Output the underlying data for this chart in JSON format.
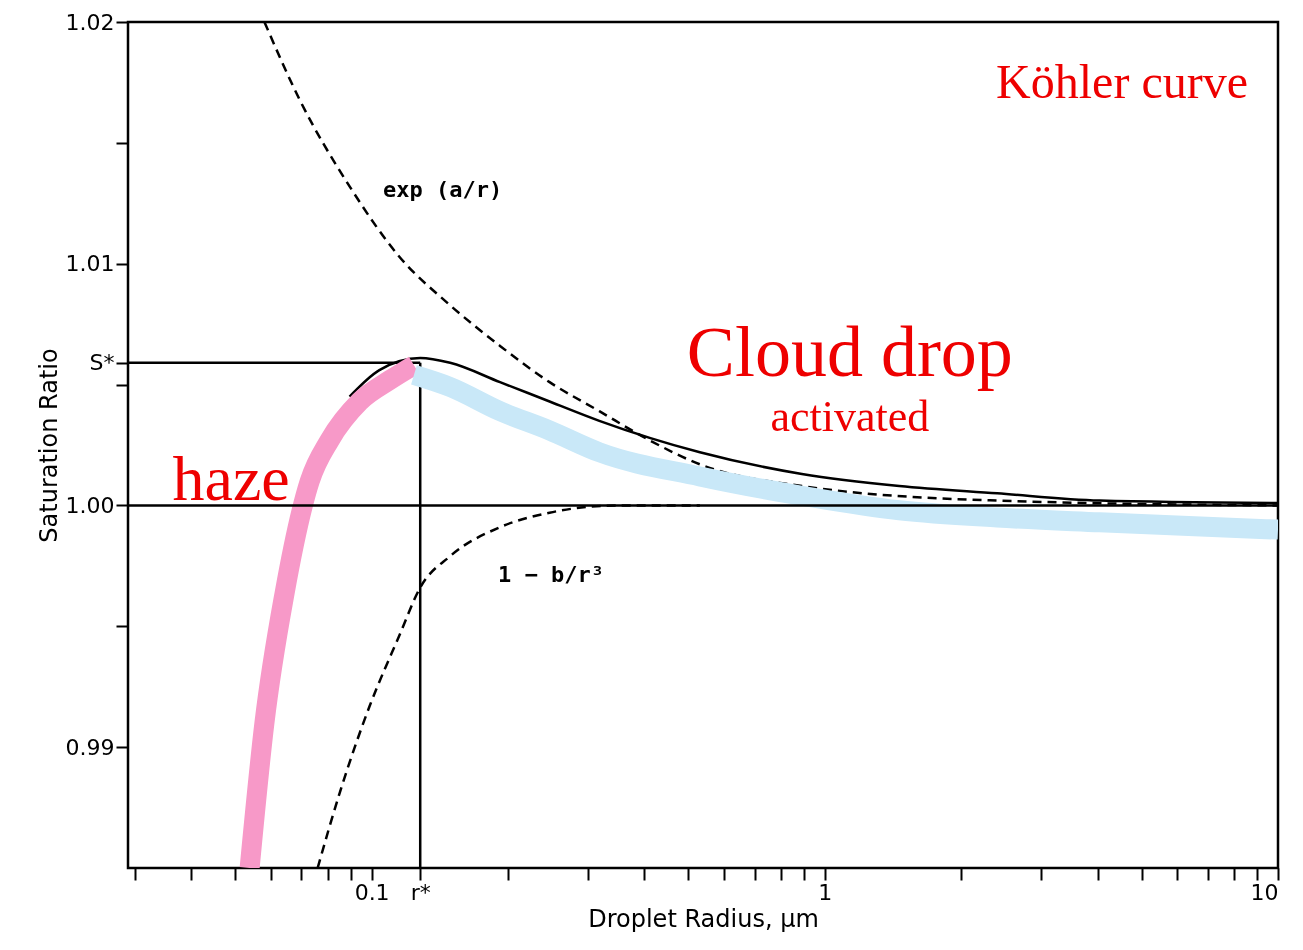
{
  "chart_data": {
    "type": "line",
    "title": "Köhler curve",
    "xlabel": "Droplet Radius, μm",
    "ylabel": "Saturation Ratio",
    "log": "x",
    "xlim": [
      0.029,
      10
    ],
    "ylim": [
      0.985,
      1.02
    ],
    "xticks": [
      {
        "value": 0.03,
        "label": null
      },
      {
        "value": 0.04,
        "label": null
      },
      {
        "value": 0.05,
        "label": null
      },
      {
        "value": 0.06,
        "label": null
      },
      {
        "value": 0.07,
        "label": null
      },
      {
        "value": 0.08,
        "label": null
      },
      {
        "value": 0.09,
        "label": null
      },
      {
        "value": 0.1,
        "label": "0.1"
      },
      {
        "value": 0.128,
        "label": "r*"
      },
      {
        "value": 0.2,
        "label": null
      },
      {
        "value": 0.3,
        "label": null
      },
      {
        "value": 0.4,
        "label": null
      },
      {
        "value": 0.5,
        "label": null
      },
      {
        "value": 0.6,
        "label": null
      },
      {
        "value": 0.7,
        "label": null
      },
      {
        "value": 0.8,
        "label": null
      },
      {
        "value": 0.9,
        "label": null
      },
      {
        "value": 1,
        "label": "1"
      },
      {
        "value": 2,
        "label": null
      },
      {
        "value": 3,
        "label": null
      },
      {
        "value": 4,
        "label": null
      },
      {
        "value": 5,
        "label": null
      },
      {
        "value": 6,
        "label": null
      },
      {
        "value": 7,
        "label": null
      },
      {
        "value": 8,
        "label": null
      },
      {
        "value": 9,
        "label": null
      },
      {
        "value": 10,
        "label": "10"
      }
    ],
    "yticks": [
      {
        "value": 0.99,
        "label": "0.99"
      },
      {
        "value": 0.995,
        "label": null
      },
      {
        "value": 1.0,
        "label": "1.00"
      },
      {
        "value": 1.005,
        "label": null
      },
      {
        "value": 1.0059,
        "label": "S*"
      },
      {
        "value": 1.01,
        "label": "1.01"
      },
      {
        "value": 1.015,
        "label": null
      },
      {
        "value": 1.02,
        "label": "1.02"
      }
    ],
    "ref_lines": [
      {
        "axis": "y",
        "value": 1.0,
        "color": "#000000",
        "line_style": "solid"
      }
    ],
    "series": [
      {
        "color": "#000000",
        "line_style": "dashed",
        "x": [
          0.058,
          0.0693,
          0.0894,
          0.115,
          0.1486,
          0.192,
          0.247,
          0.318,
          0.41,
          0.53,
          0.89,
          2.4,
          10
        ],
        "values": [
          1.02,
          1.0168,
          1.0132,
          1.0103,
          1.0083,
          1.0066,
          1.0051,
          1.0039,
          1.0027,
          1.0017,
          1.0008,
          1.0002,
          1.0
        ]
      },
      {
        "color": "#000000",
        "line_style": "dashed",
        "x": [
          0.076,
          0.085,
          0.099,
          0.115,
          0.128,
          0.149,
          0.192,
          0.247,
          0.35,
          0.53
        ],
        "values": [
          0.985,
          0.9881,
          0.9917,
          0.9946,
          0.9966,
          0.9979,
          0.9991,
          0.9997,
          1.0,
          1.0
        ]
      },
      {
        "color": "#000000",
        "line_style": "solid",
        "x": [
          0.0894,
          0.104,
          0.128,
          0.149,
          0.192,
          0.247,
          0.318,
          0.53,
          0.89,
          1.46,
          2.4,
          4.04,
          10
        ],
        "values": [
          1.0045,
          1.0056,
          1.0061,
          1.0059,
          1.0051,
          1.0043,
          1.0035,
          1.0022,
          1.0013,
          1.0008,
          1.0005,
          1.0002,
          1.0001
        ]
      },
      {
        "color": "#000000",
        "line_style": "solid",
        "x": [
          0.029,
          0.128
        ],
        "values": [
          1.0059,
          1.0059
        ]
      },
      {
        "color": "#000000",
        "line_style": "solid",
        "x": [
          0.128,
          0.128
        ],
        "values": [
          1.0059,
          0.985
        ]
      },
      {
        "name": "haze",
        "color": "#f799c8",
        "line_style": "solid",
        "x": [
          0.0538,
          0.058,
          0.0643,
          0.073,
          0.0808,
          0.0941,
          0.11,
          0.124
        ],
        "values": [
          0.985,
          0.991,
          0.9964,
          1.001,
          1.0027,
          1.0043,
          1.0052,
          1.0058
        ]
      },
      {
        "name": "Cloud drop",
        "color": "#c9e8f8",
        "line_style": "solid",
        "x": [
          0.124,
          0.149,
          0.192,
          0.247,
          0.318,
          0.53,
          0.89,
          1.46,
          2.4,
          4.04,
          10
        ],
        "values": [
          1.0054,
          1.0049,
          1.0039,
          1.0031,
          1.0022,
          1.0012,
          1.0004,
          0.9998,
          0.9995,
          0.9993,
          0.999
        ]
      }
    ],
    "annotations": [
      "exp (a/r)",
      "1 − b/r³",
      "activated"
    ]
  }
}
